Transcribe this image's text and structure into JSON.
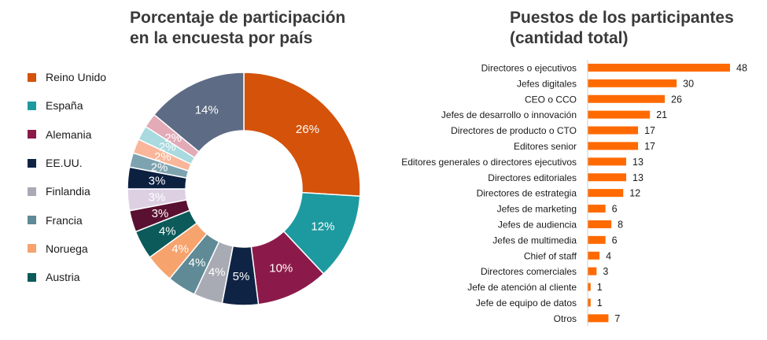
{
  "chart_data": [
    {
      "type": "pie",
      "title": "Porcentaje de participación en la encuesta por país",
      "title_lines": [
        "Porcentaje de participación",
        "en la encuesta por país"
      ],
      "donut": true,
      "legend_position": "left",
      "legend_entries": [
        "Reino Unido",
        "España",
        "Alemania",
        "EE.UU.",
        "Finlandia",
        "Francia",
        "Noruega",
        "Austria"
      ],
      "slices": [
        {
          "name": "Reino Unido",
          "value": 26,
          "label": "26%",
          "color": "#d4520a"
        },
        {
          "name": "España",
          "value": 12,
          "label": "12%",
          "color": "#1d9aa0"
        },
        {
          "name": "Alemania",
          "value": 10,
          "label": "10%",
          "color": "#8b1a4a"
        },
        {
          "name": "EE.UU.",
          "value": 5,
          "label": "5%",
          "color": "#0f2344"
        },
        {
          "name": "Finlandia",
          "value": 4,
          "label": "4%",
          "color": "#a9abb4"
        },
        {
          "name": "Francia",
          "value": 4,
          "label": "4%",
          "color": "#5f8a96"
        },
        {
          "name": "Noruega",
          "value": 4,
          "label": "4%",
          "color": "#f6a36d"
        },
        {
          "name": "Austria",
          "value": 4,
          "label": "4%",
          "color": "#0c5a5a"
        },
        {
          "name": "",
          "value": 3,
          "label": "3%",
          "color": "#5a1030"
        },
        {
          "name": "",
          "value": 3,
          "label": "3%",
          "color": "#ddd0e3"
        },
        {
          "name": "",
          "value": 3,
          "label": "3%",
          "color": "#0c2040"
        },
        {
          "name": "",
          "value": 2,
          "label": "2%",
          "color": "#7ea3b0"
        },
        {
          "name": "",
          "value": 2,
          "label": "2%",
          "color": "#f9b69a"
        },
        {
          "name": "",
          "value": 2,
          "label": "2%",
          "color": "#a8dadf"
        },
        {
          "name": "",
          "value": 2,
          "label": "2%",
          "color": "#e3aab7"
        },
        {
          "name": "",
          "value": 14,
          "label": "14%",
          "color": "#5d6b85"
        }
      ]
    },
    {
      "type": "bar",
      "orientation": "horizontal",
      "title": "Puestos de los participantes (cantidad total)",
      "title_lines": [
        "Puestos de los participantes",
        "(cantidad total)"
      ],
      "bar_color": "#ff6a00",
      "categories": [
        "Directores o ejecutivos",
        "Jefes digitales",
        "CEO o CCO",
        "Jefes de desarrollo o innovación",
        "Directores de producto o CTO",
        "Editores senior",
        "Editores generales o directores ejecutivos",
        "Directores editoriales",
        "Directores de estrategia",
        "Jefes de marketing",
        "Jefes de audiencia",
        "Jefes de multimedia",
        "Chief of staff",
        "Directores comerciales",
        "Jefe de atención al cliente",
        "Jefe de equipo de datos",
        "Otros"
      ],
      "values": [
        48,
        30,
        26,
        21,
        17,
        17,
        13,
        13,
        12,
        6,
        8,
        6,
        4,
        3,
        1,
        1,
        7
      ],
      "data_labels": [
        "48",
        "30",
        "26",
        "21",
        "17",
        "17",
        "13",
        "13",
        "12",
        "6",
        "8",
        "6",
        "4",
        "3",
        "1",
        "1",
        "7"
      ],
      "grid": false
    }
  ]
}
